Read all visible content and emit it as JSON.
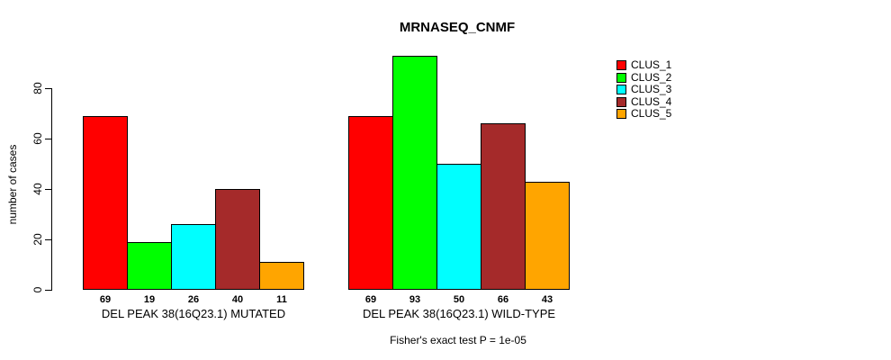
{
  "chart_data": {
    "type": "bar",
    "title": "MRNASEQ_CNMF",
    "ylabel": "number of cases",
    "xlabel": "",
    "yticks": [
      0,
      20,
      40,
      60,
      80
    ],
    "ylim": [
      0,
      93
    ],
    "grid": false,
    "legend_position": "right-top",
    "bar_border_color": "#000000",
    "axis_color": "#000000",
    "background_color": "#ffffff",
    "series_colors": [
      "#ff0000",
      "#00ff00",
      "#00ffff",
      "#a52a2a",
      "#ffa500"
    ],
    "groups": [
      {
        "label": "DEL PEAK 38(16Q23.1) MUTATED",
        "values": [
          69,
          19,
          26,
          40,
          11
        ]
      },
      {
        "label": "DEL PEAK 38(16Q23.1) WILD-TYPE",
        "values": [
          69,
          93,
          50,
          66,
          43
        ]
      }
    ],
    "legend": [
      {
        "label": "CLUS_1",
        "color": "#ff0000"
      },
      {
        "label": "CLUS_2",
        "color": "#00ff00"
      },
      {
        "label": "CLUS_3",
        "color": "#00ffff"
      },
      {
        "label": "CLUS_4",
        "color": "#a52a2a"
      },
      {
        "label": "CLUS_5",
        "color": "#ffa500"
      }
    ],
    "footnote": "Fisher's exact test P = 1e-05"
  }
}
